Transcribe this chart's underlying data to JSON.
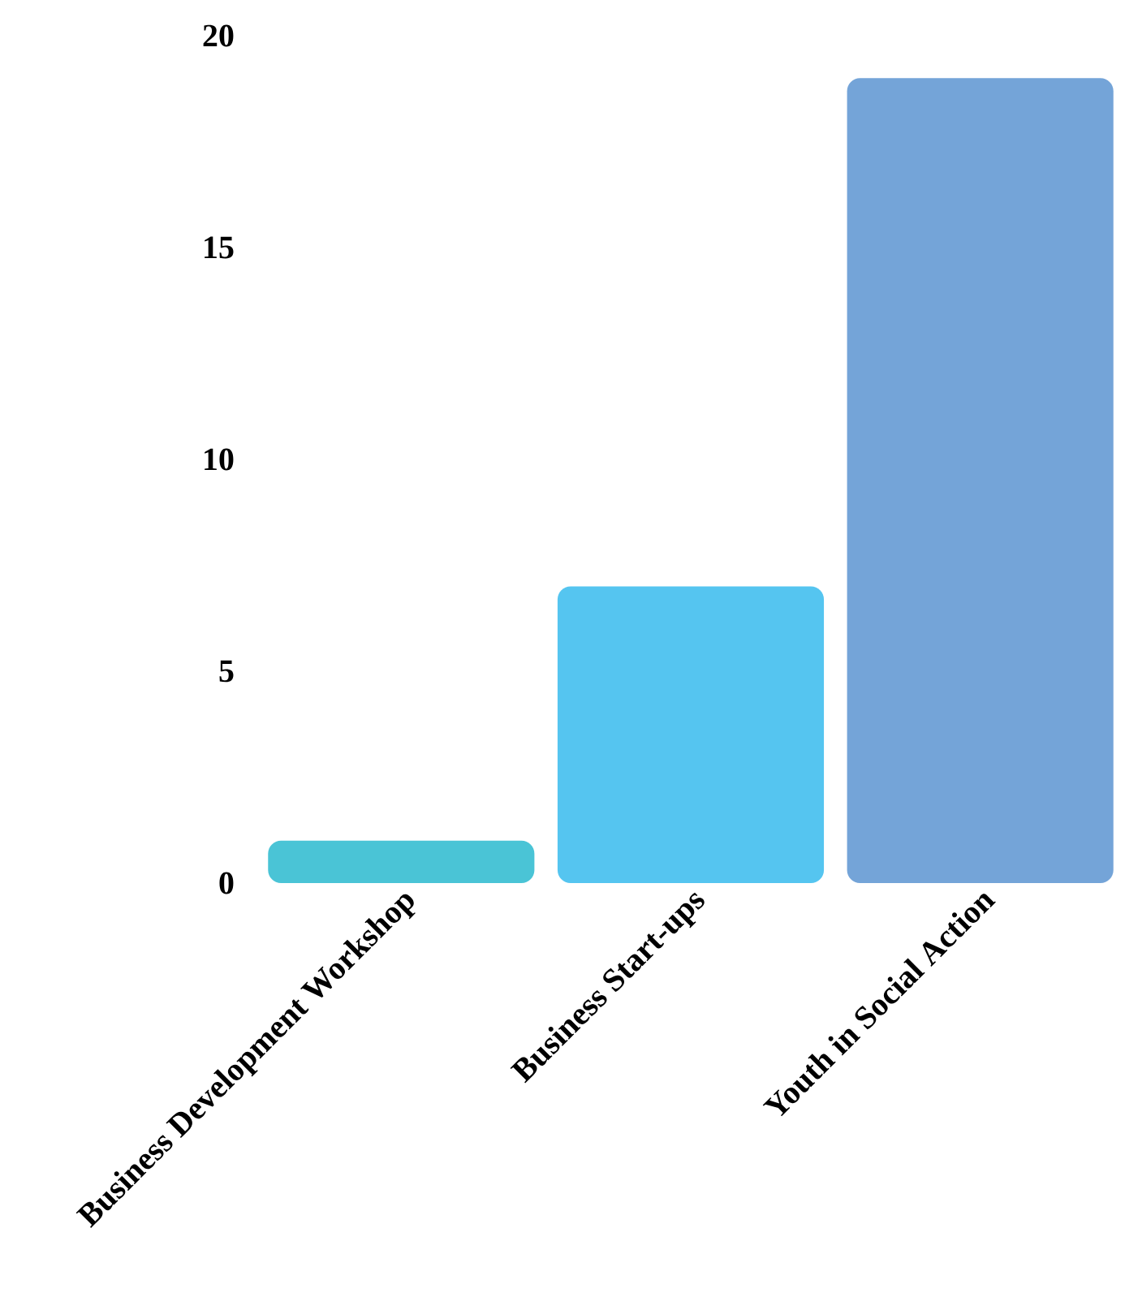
{
  "chart_data": {
    "type": "bar",
    "categories": [
      "Business Development Workshop",
      "Business Start-ups",
      "Youth in Social Action"
    ],
    "values": [
      1,
      7,
      19
    ],
    "colors": [
      "#4ac4d6",
      "#55c5f0",
      "#74a4d8"
    ],
    "ylim": [
      0,
      20
    ],
    "yticks": [
      0,
      5,
      10,
      15,
      20
    ]
  }
}
